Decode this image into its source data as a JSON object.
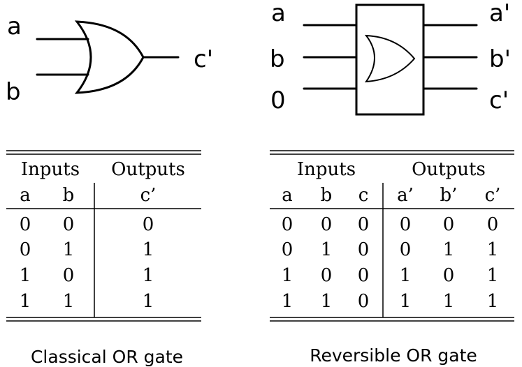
{
  "classical": {
    "input_labels": [
      "a",
      "b"
    ],
    "output_label": "c'",
    "table": {
      "group_inputs": "Inputs",
      "group_outputs": "Outputs",
      "col_headers": [
        "a",
        "b",
        "c’"
      ],
      "rows": [
        [
          "0",
          "0",
          "0"
        ],
        [
          "0",
          "1",
          "1"
        ],
        [
          "1",
          "0",
          "1"
        ],
        [
          "1",
          "1",
          "1"
        ]
      ]
    },
    "caption": "Classical OR gate"
  },
  "reversible": {
    "input_labels": [
      "a",
      "b",
      "0"
    ],
    "output_labels": [
      "a'",
      "b'",
      "c'"
    ],
    "table": {
      "group_inputs": "Inputs",
      "group_outputs": "Outputs",
      "col_headers": [
        "a",
        "b",
        "c",
        "a’",
        "b’",
        "c’"
      ],
      "rows": [
        [
          "0",
          "0",
          "0",
          "0",
          "0",
          "0"
        ],
        [
          "0",
          "1",
          "0",
          "0",
          "1",
          "1"
        ],
        [
          "1",
          "0",
          "0",
          "1",
          "0",
          "1"
        ],
        [
          "1",
          "1",
          "0",
          "1",
          "1",
          "1"
        ]
      ]
    },
    "caption": "Reversible OR gate"
  }
}
